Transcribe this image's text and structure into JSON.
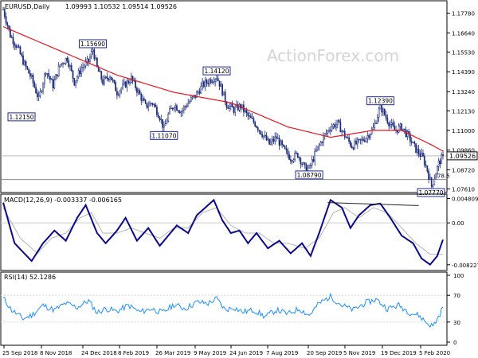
{
  "header": {
    "symbol": "EURUSD,Daily",
    "ohlc": "1.09993 1.10532 1.09514 1.09526",
    "watermark": "ActionForex.com"
  },
  "chart_data": [
    {
      "type": "candlestick",
      "panel": "price",
      "y_ticks": [
        1.0761,
        1.0872,
        1.0986,
        1.11,
        1.1213,
        1.1324,
        1.1439,
        1.1553,
        1.1664,
        1.1778
      ],
      "y_tick_labels": [
        "1.07610",
        "1.08720",
        "1.09860",
        "1.11000",
        "1.12130",
        "1.13240",
        "1.14390",
        "1.15530",
        "1.16640",
        "1.17780"
      ],
      "ylim": [
        1.0745,
        1.1845
      ],
      "current_price": 1.09526,
      "current_price_label": "1.09526",
      "fib_level": 1.0816,
      "fib_label": "78.6",
      "x_dates": [
        "25 Sep 2018",
        "8 Nov 2018",
        "24 Dec 2018",
        "8 Feb 2019",
        "26 Mar 2019",
        "9 May 2019",
        "24 Jun 2019",
        "7 Aug 2019",
        "20 Sep 2019",
        "5 Nov 2019",
        "19 Dec 2019",
        "5 Feb 2020"
      ],
      "close_anchors": [
        [
          0,
          1.18
        ],
        [
          5,
          1.165
        ],
        [
          10,
          1.158
        ],
        [
          15,
          1.148
        ],
        [
          20,
          1.14
        ],
        [
          25,
          1.128
        ],
        [
          30,
          1.145
        ],
        [
          35,
          1.136
        ],
        [
          40,
          1.148
        ],
        [
          45,
          1.152
        ],
        [
          50,
          1.138
        ],
        [
          55,
          1.146
        ],
        [
          60,
          1.15
        ],
        [
          63,
          1.1569
        ],
        [
          66,
          1.146
        ],
        [
          70,
          1.138
        ],
        [
          75,
          1.142
        ],
        [
          80,
          1.132
        ],
        [
          85,
          1.136
        ],
        [
          90,
          1.14
        ],
        [
          95,
          1.132
        ],
        [
          100,
          1.124
        ],
        [
          105,
          1.126
        ],
        [
          110,
          1.118
        ],
        [
          113,
          1.1107
        ],
        [
          116,
          1.119
        ],
        [
          120,
          1.125
        ],
        [
          125,
          1.121
        ],
        [
          130,
          1.126
        ],
        [
          135,
          1.13
        ],
        [
          140,
          1.136
        ],
        [
          145,
          1.139
        ],
        [
          150,
          1.1412
        ],
        [
          153,
          1.135
        ],
        [
          157,
          1.125
        ],
        [
          162,
          1.122
        ],
        [
          167,
          1.124
        ],
        [
          172,
          1.118
        ],
        [
          177,
          1.114
        ],
        [
          182,
          1.108
        ],
        [
          187,
          1.102
        ],
        [
          192,
          1.106
        ],
        [
          197,
          1.099
        ],
        [
          202,
          1.094
        ],
        [
          207,
          1.096
        ],
        [
          212,
          1.088
        ],
        [
          215,
          1.0879
        ],
        [
          220,
          1.098
        ],
        [
          225,
          1.106
        ],
        [
          230,
          1.112
        ],
        [
          235,
          1.114
        ],
        [
          240,
          1.107
        ],
        [
          245,
          1.101
        ],
        [
          250,
          1.103
        ],
        [
          255,
          1.106
        ],
        [
          260,
          1.111
        ],
        [
          265,
          1.1239
        ],
        [
          270,
          1.116
        ],
        [
          275,
          1.11
        ],
        [
          280,
          1.112
        ],
        [
          285,
          1.106
        ],
        [
          290,
          1.099
        ],
        [
          295,
          1.094
        ],
        [
          298,
          1.087
        ],
        [
          301,
          1.0777
        ],
        [
          303,
          1.083
        ],
        [
          306,
          1.091
        ],
        [
          309,
          1.0953
        ]
      ],
      "moving_average_anchors": [
        [
          0,
          1.17
        ],
        [
          40,
          1.156
        ],
        [
          80,
          1.142
        ],
        [
          120,
          1.132
        ],
        [
          160,
          1.126
        ],
        [
          200,
          1.112
        ],
        [
          230,
          1.106
        ],
        [
          260,
          1.11
        ],
        [
          280,
          1.11
        ],
        [
          300,
          1.102
        ],
        [
          309,
          1.098
        ]
      ],
      "annotations": [
        {
          "text": "1.15690",
          "value": 1.1569
        },
        {
          "text": "1.12150",
          "value": 1.1215
        },
        {
          "text": "1.11070",
          "value": 1.1107
        },
        {
          "text": "1.14120",
          "value": 1.1412
        },
        {
          "text": "1.08790",
          "value": 1.0879
        },
        {
          "text": "1.12390",
          "value": 1.1239
        },
        {
          "text": "1.07770",
          "value": 1.0777
        }
      ]
    },
    {
      "type": "line",
      "panel": "macd",
      "title": "MACD(12,26,9) -0.003337 -0.006165",
      "y_ticks": [
        0.004809,
        0.0,
        -0.008227
      ],
      "y_tick_labels": [
        "0.004809",
        "0.00",
        "-0.008227"
      ],
      "ylim": [
        -0.0092,
        0.0055
      ],
      "series": [
        {
          "name": "MACD",
          "color": "#0a0a8c",
          "anchors": [
            [
              0,
              0.004
            ],
            [
              8,
              -0.004
            ],
            [
              20,
              -0.0075
            ],
            [
              28,
              -0.004
            ],
            [
              36,
              -0.0015
            ],
            [
              44,
              -0.0035
            ],
            [
              52,
              0.001
            ],
            [
              58,
              0.0035
            ],
            [
              66,
              -0.002
            ],
            [
              72,
              -0.004
            ],
            [
              80,
              -0.0015
            ],
            [
              86,
              0.001
            ],
            [
              94,
              -0.0035
            ],
            [
              102,
              -0.001
            ],
            [
              110,
              -0.0045
            ],
            [
              116,
              -0.0025
            ],
            [
              122,
              -0.0005
            ],
            [
              130,
              -0.002
            ],
            [
              136,
              0.0015
            ],
            [
              142,
              0.003
            ],
            [
              148,
              0.0045
            ],
            [
              154,
              0.0005
            ],
            [
              160,
              -0.002
            ],
            [
              166,
              -0.0015
            ],
            [
              172,
              -0.004
            ],
            [
              178,
              -0.002
            ],
            [
              186,
              -0.005
            ],
            [
              194,
              -0.0035
            ],
            [
              202,
              -0.006
            ],
            [
              210,
              -0.004
            ],
            [
              216,
              -0.0065
            ],
            [
              222,
              -0.002
            ],
            [
              230,
              0.0045
            ],
            [
              238,
              0.003
            ],
            [
              244,
              -0.001
            ],
            [
              250,
              0.0015
            ],
            [
              258,
              0.0035
            ],
            [
              265,
              0.0038
            ],
            [
              272,
              0.001
            ],
            [
              280,
              -0.0025
            ],
            [
              288,
              -0.004
            ],
            [
              294,
              -0.007
            ],
            [
              300,
              -0.0082
            ],
            [
              305,
              -0.0065
            ],
            [
              309,
              -0.0033
            ]
          ]
        },
        {
          "name": "Signal",
          "color": "#b4b4b4",
          "anchors": [
            [
              0,
              0.003
            ],
            [
              12,
              -0.003
            ],
            [
              24,
              -0.006
            ],
            [
              34,
              -0.003
            ],
            [
              44,
              -0.002
            ],
            [
              54,
              0.001
            ],
            [
              62,
              0.002
            ],
            [
              70,
              -0.002
            ],
            [
              80,
              -0.002
            ],
            [
              90,
              -0.001
            ],
            [
              100,
              -0.002
            ],
            [
              110,
              -0.003
            ],
            [
              120,
              -0.001
            ],
            [
              130,
              -0.001
            ],
            [
              140,
              0.002
            ],
            [
              150,
              0.003
            ],
            [
              160,
              -0.0005
            ],
            [
              170,
              -0.002
            ],
            [
              180,
              -0.002
            ],
            [
              190,
              -0.004
            ],
            [
              200,
              -0.004
            ],
            [
              212,
              -0.005
            ],
            [
              222,
              -0.003
            ],
            [
              232,
              0.002
            ],
            [
              240,
              0.003
            ],
            [
              250,
              0.001
            ],
            [
              260,
              0.003
            ],
            [
              270,
              0.002
            ],
            [
              280,
              -0.001
            ],
            [
              290,
              -0.004
            ],
            [
              300,
              -0.0062
            ],
            [
              309,
              -0.0062
            ]
          ]
        }
      ],
      "trendline": [
        [
          228,
          0.004
        ],
        [
          292,
          0.0034
        ]
      ]
    },
    {
      "type": "line",
      "panel": "rsi",
      "title": "RSI(14) 52.1286",
      "y_ticks": [
        100,
        70,
        30,
        0
      ],
      "y_tick_labels": [
        "100",
        "70",
        "30",
        "0"
      ],
      "ylim": [
        0,
        100
      ],
      "series": [
        {
          "name": "RSI",
          "color": "#1e90ff",
          "anchors": [
            [
              0,
              66
            ],
            [
              6,
              48
            ],
            [
              14,
              35
            ],
            [
              20,
              40
            ],
            [
              28,
              55
            ],
            [
              36,
              48
            ],
            [
              44,
              58
            ],
            [
              52,
              52
            ],
            [
              60,
              62
            ],
            [
              66,
              44
            ],
            [
              72,
              50
            ],
            [
              80,
              46
            ],
            [
              88,
              55
            ],
            [
              96,
              45
            ],
            [
              104,
              50
            ],
            [
              112,
              44
            ],
            [
              120,
              56
            ],
            [
              128,
              50
            ],
            [
              136,
              60
            ],
            [
              144,
              58
            ],
            [
              150,
              65
            ],
            [
              156,
              48
            ],
            [
              162,
              52
            ],
            [
              168,
              45
            ],
            [
              176,
              48
            ],
            [
              184,
              38
            ],
            [
              192,
              48
            ],
            [
              200,
              42
            ],
            [
              208,
              50
            ],
            [
              215,
              40
            ],
            [
              222,
              58
            ],
            [
              230,
              68
            ],
            [
              238,
              55
            ],
            [
              246,
              48
            ],
            [
              254,
              58
            ],
            [
              262,
              64
            ],
            [
              270,
              50
            ],
            [
              278,
              55
            ],
            [
              286,
              44
            ],
            [
              292,
              40
            ],
            [
              298,
              28
            ],
            [
              302,
              24
            ],
            [
              306,
              38
            ],
            [
              309,
              52
            ]
          ]
        }
      ]
    }
  ]
}
